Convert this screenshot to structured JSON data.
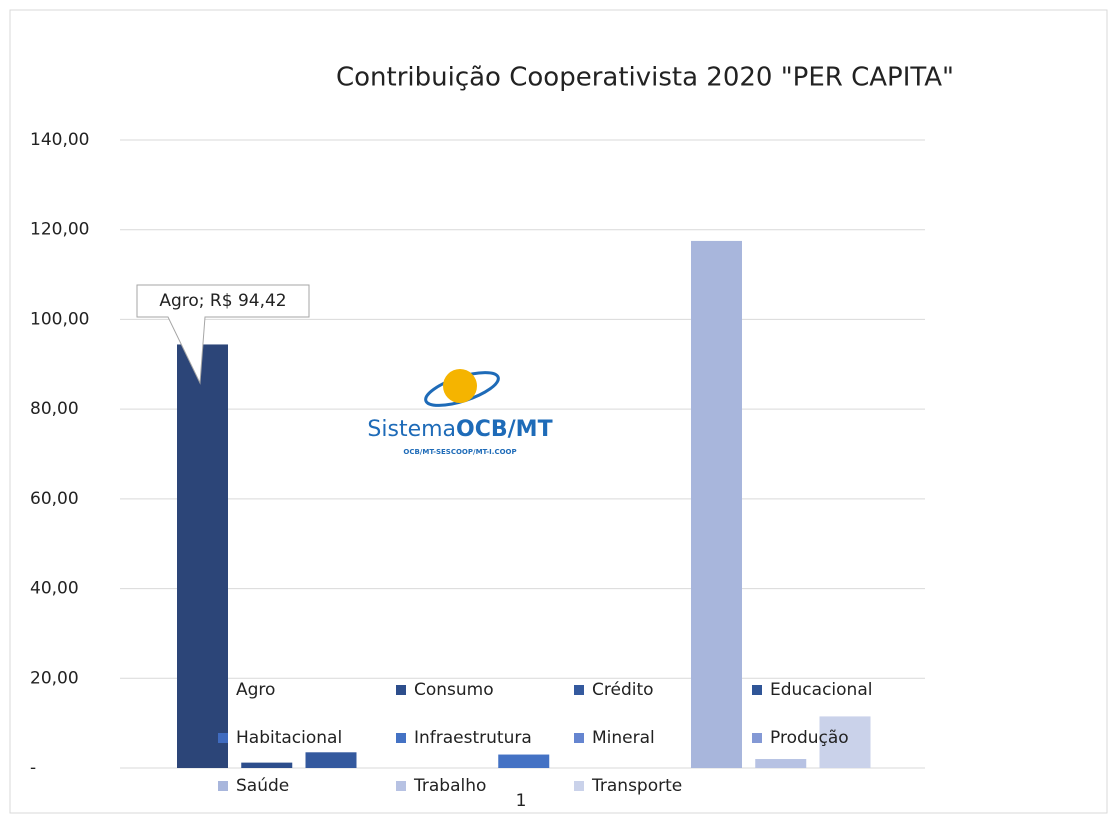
{
  "chart_data": {
    "type": "bar",
    "title": "Contribuição Cooperativista 2020 \"PER CAPITA\"",
    "categories": [
      "1"
    ],
    "series": [
      {
        "name": "Agro",
        "color": "#2c4578",
        "values": [
          94.42
        ],
        "value_labels": [
          "Agro; R$ 94,42"
        ]
      },
      {
        "name": "Consumo",
        "color": "#2d4e8c",
        "values": [
          1.2
        ]
      },
      {
        "name": "Crédito",
        "color": "#34599e",
        "values": [
          3.5
        ]
      },
      {
        "name": "Educacional",
        "color": "#2f5597",
        "values": [
          0
        ]
      },
      {
        "name": "Habitacional",
        "color": "#3f6bc0",
        "values": [
          0
        ]
      },
      {
        "name": "Infraestrutura",
        "color": "#4472c4",
        "values": [
          3
        ]
      },
      {
        "name": "Mineral",
        "color": "#6585d0",
        "values": [
          0
        ]
      },
      {
        "name": "Produção",
        "color": "#8499d5",
        "values": [
          0
        ]
      },
      {
        "name": "Saúde",
        "color": "#a8b6dc",
        "values": [
          117.5
        ]
      },
      {
        "name": "Trabalho",
        "color": "#b7c2e3",
        "values": [
          2
        ]
      },
      {
        "name": "Transporte",
        "color": "#cad2ea",
        "values": [
          11.5
        ]
      }
    ],
    "ylim": [
      0,
      140
    ],
    "yticks": [
      {
        "value": 0,
        "label": "-"
      },
      {
        "value": 20,
        "label": "20,00"
      },
      {
        "value": 40,
        "label": "40,00"
      },
      {
        "value": 60,
        "label": "60,00"
      },
      {
        "value": 80,
        "label": "80,00"
      },
      {
        "value": 100,
        "label": "100,00"
      },
      {
        "value": 120,
        "label": "120,00"
      },
      {
        "value": 140,
        "label": "140,00"
      }
    ],
    "grid": true,
    "legend": "bottom",
    "logo": {
      "name": "Sistema",
      "brand": "OCB/MT",
      "tagline": "OCB/MT-SESCOOP/MT-I.COOP"
    }
  }
}
